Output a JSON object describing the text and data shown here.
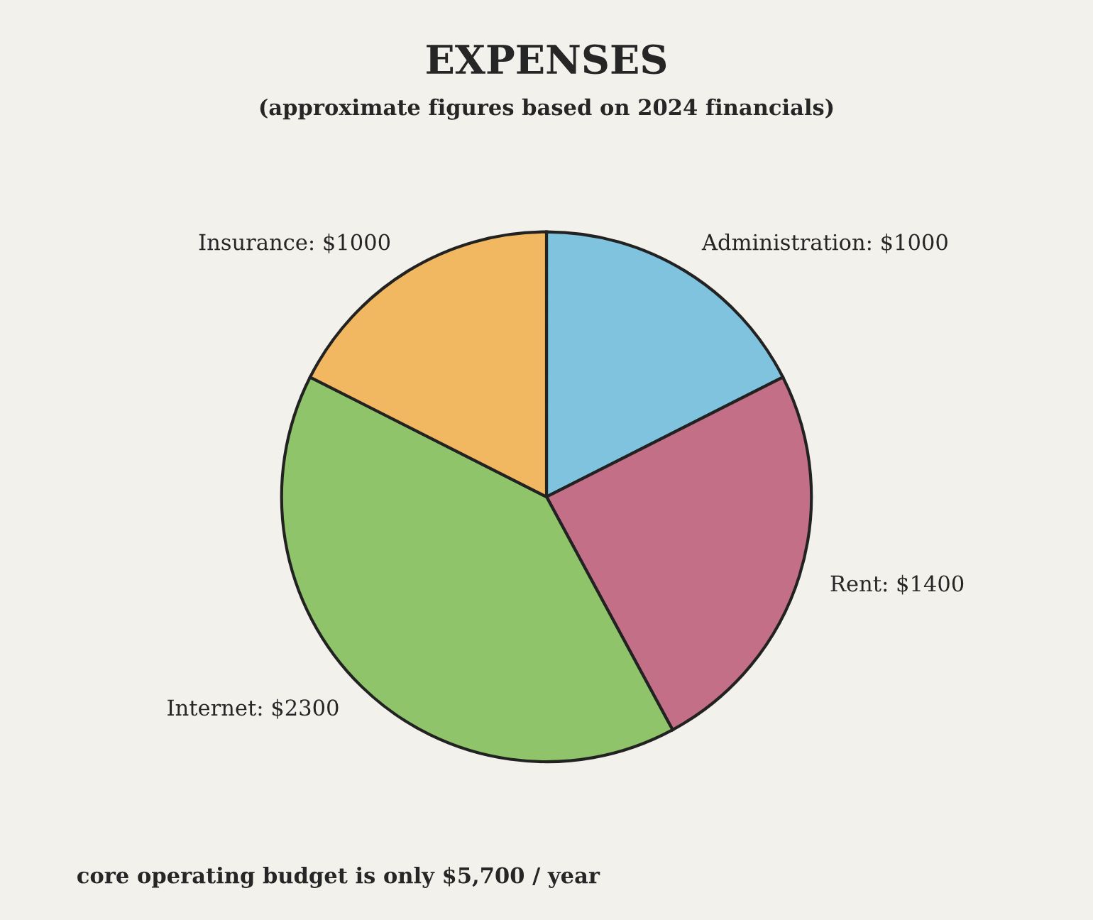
{
  "chart_data": {
    "type": "pie",
    "title": "EXPENSES",
    "subtitle": "(approximate figures based on 2024 financials)",
    "categories": [
      "Administration",
      "Rent",
      "Internet",
      "Insurance"
    ],
    "values": [
      1000,
      1400,
      2300,
      1000
    ],
    "value_labels": [
      "$1000",
      "$1400",
      "$2300",
      "$1000"
    ],
    "colors": [
      "#7fc3df",
      "#c36f88",
      "#8fc46b",
      "#f2b761"
    ],
    "annotations": [
      "core operating budget is only $5,700 / year"
    ],
    "legend": false
  }
}
